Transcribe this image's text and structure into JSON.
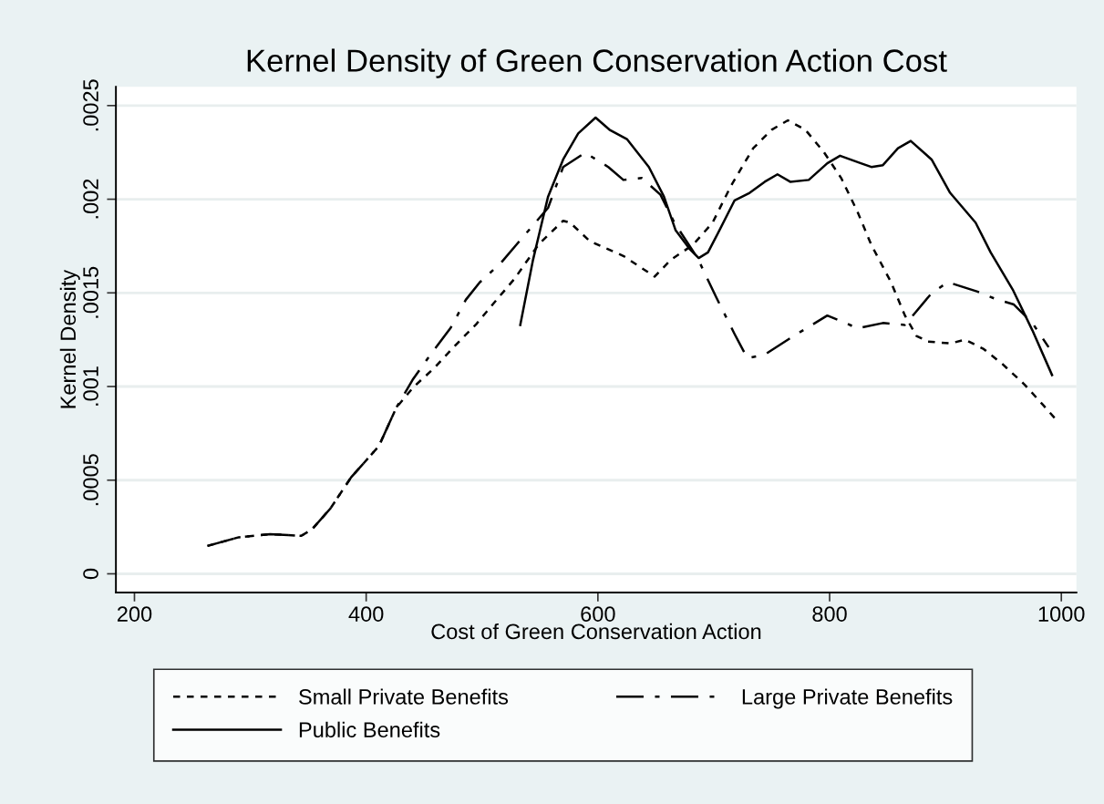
{
  "chart_data": {
    "type": "line",
    "title": "Kernel Density of Green Conservation Action Cost",
    "xlabel": "Cost of Green Conservation Action",
    "ylabel": "Kernel Density",
    "xlim": [
      184,
      1013
    ],
    "xticks": [
      200,
      400,
      600,
      800,
      1000
    ],
    "ylim": [
      -0.0001,
      0.0026
    ],
    "yticks": [
      {
        "value": 0,
        "label": "0"
      },
      {
        "value": 0.0005,
        "label": ".0005"
      },
      {
        "value": 0.001,
        "label": ".001"
      },
      {
        "value": 0.0015,
        "label": ".0015"
      },
      {
        "value": 0.002,
        "label": ".002"
      },
      {
        "value": 0.0025,
        "label": ".0025"
      }
    ],
    "grid": "y",
    "legend": "bottom",
    "series": [
      {
        "name": "Small Private Benefits",
        "color": "#000000",
        "line_style": "dotted",
        "x": [
          263,
          290,
          317,
          344,
          353,
          369,
          387,
          411,
          426,
          441,
          459,
          477,
          495,
          510,
          528,
          549,
          570,
          576,
          593,
          622,
          649,
          663,
          682,
          699,
          715,
          734,
          750,
          764,
          779,
          795,
          810,
          824,
          836,
          853,
          865,
          875,
          885,
          904,
          917,
          933,
          949,
          968,
          984,
          997
        ],
        "values": [
          0.000149,
          0.000195,
          0.000212,
          0.000203,
          0.000236,
          0.000348,
          0.000515,
          0.000682,
          0.000887,
          0.000998,
          0.0011,
          0.00122,
          0.001333,
          0.001444,
          0.001575,
          0.00176,
          0.001885,
          0.001875,
          0.001776,
          0.001697,
          0.001587,
          0.001677,
          0.001756,
          0.001875,
          0.002073,
          0.002272,
          0.002371,
          0.002421,
          0.002371,
          0.002252,
          0.002113,
          0.001934,
          0.001756,
          0.001557,
          0.001379,
          0.00127,
          0.00124,
          0.00123,
          0.00125,
          0.0012,
          0.001121,
          0.001012,
          0.000903,
          0.000813
        ]
      },
      {
        "name": "Large Private Benefits",
        "color": "#000000",
        "line_style": "dashdot",
        "x": [
          263,
          290,
          317,
          344,
          353,
          369,
          387,
          411,
          426,
          440,
          455,
          473,
          486,
          498,
          516,
          535,
          557,
          570,
          589,
          609,
          622,
          638,
          654,
          666,
          686,
          702,
          718,
          729,
          744,
          769,
          798,
          814,
          824,
          846,
          865,
          888,
          902,
          927,
          943,
          959,
          975,
          989
        ],
        "values": [
          0.000149,
          0.000195,
          0.000212,
          0.000203,
          0.000236,
          0.000348,
          0.000515,
          0.000682,
          0.000887,
          0.001035,
          0.001166,
          0.001314,
          0.001463,
          0.001556,
          0.001658,
          0.001796,
          0.001954,
          0.002172,
          0.002248,
          0.002172,
          0.002103,
          0.002113,
          0.002024,
          0.001875,
          0.001686,
          0.001478,
          0.00128,
          0.001151,
          0.00117,
          0.00127,
          0.001379,
          0.001339,
          0.00131,
          0.001339,
          0.001329,
          0.001498,
          0.001557,
          0.001508,
          0.001468,
          0.001438,
          0.001339,
          0.00121
        ]
      },
      {
        "name": "Public Benefits",
        "color": "#000000",
        "line_style": "solid",
        "x": [
          533,
          544,
          557,
          570,
          583,
          598,
          610,
          625,
          644,
          657,
          667,
          679,
          687,
          695,
          705,
          718,
          731,
          744,
          755,
          766,
          782,
          798,
          809,
          827,
          836,
          846,
          859,
          870,
          888,
          904,
          926,
          939,
          958,
          975,
          992
        ],
        "values": [
          0.001329,
          0.001676,
          0.002014,
          0.002212,
          0.002351,
          0.002436,
          0.002371,
          0.002321,
          0.002172,
          0.002014,
          0.001835,
          0.001736,
          0.001686,
          0.001716,
          0.001835,
          0.001994,
          0.002034,
          0.002093,
          0.002133,
          0.002093,
          0.002103,
          0.002192,
          0.002232,
          0.002192,
          0.002172,
          0.002182,
          0.002272,
          0.002311,
          0.002212,
          0.002034,
          0.001875,
          0.001716,
          0.001518,
          0.0013,
          0.001061
        ]
      }
    ]
  }
}
